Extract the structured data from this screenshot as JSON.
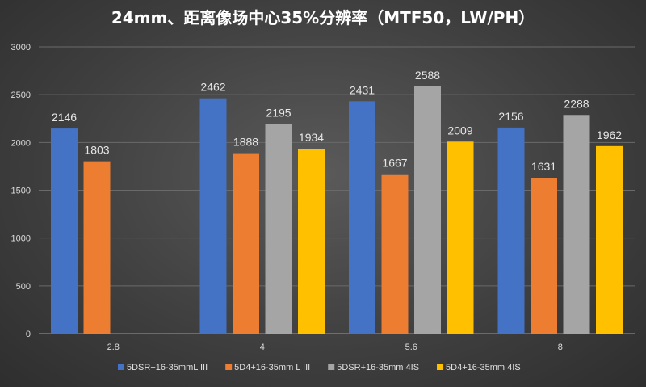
{
  "chart_data": {
    "type": "bar",
    "title": "24mm、距离像场中心35%分辨率（MTF50，LW/PH）",
    "xlabel": "",
    "ylabel": "",
    "ylim": [
      0,
      3000
    ],
    "yticks": [
      0,
      500,
      1000,
      1500,
      2000,
      2500,
      3000
    ],
    "grid": true,
    "legend_position": "bottom",
    "categories": [
      "2.8",
      "4",
      "5.6",
      "8"
    ],
    "series": [
      {
        "name": "5DSR+16-35mmL III",
        "color": "#4472c4",
        "values": [
          2146,
          2462,
          2431,
          2156
        ]
      },
      {
        "name": "5D4+16-35mm L III",
        "color": "#ed7d31",
        "values": [
          1803,
          1888,
          1667,
          1631
        ]
      },
      {
        "name": "5DSR+16-35mm 4IS",
        "color": "#a5a5a5",
        "values": [
          null,
          2195,
          2588,
          2288
        ]
      },
      {
        "name": "5D4+16-35mm 4IS",
        "color": "#ffc000",
        "values": [
          null,
          1934,
          2009,
          1962
        ]
      }
    ]
  }
}
